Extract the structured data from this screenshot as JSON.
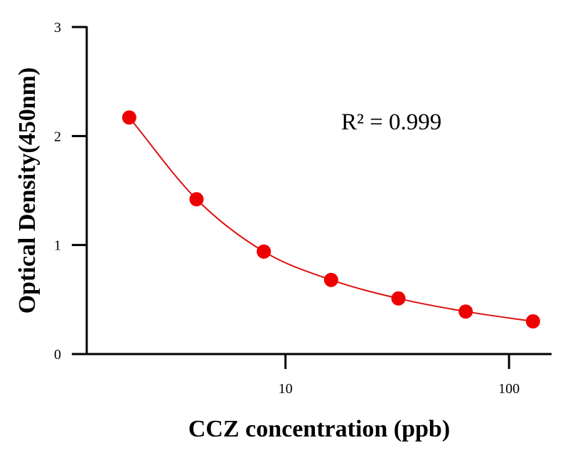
{
  "chart_data": {
    "type": "scatter",
    "title": "",
    "xlabel": "CCZ concentration (ppb)",
    "ylabel": "Optical Density(450nm)",
    "x_scale": "log",
    "xlim": [
      1.3,
      155
    ],
    "ylim": [
      0,
      3
    ],
    "x_ticks": [
      10,
      100
    ],
    "x_tick_labels": [
      "10",
      "100"
    ],
    "y_ticks": [
      0,
      1,
      2,
      3
    ],
    "y_tick_labels": [
      "0",
      "1",
      "2",
      "3"
    ],
    "grid": false,
    "annotation": "R² = 0.999",
    "colors": {
      "points": "#ee0000",
      "curve": "#dd1111",
      "axis": "#000000"
    },
    "series": [
      {
        "x": [
          2,
          4,
          8,
          16,
          32,
          64,
          128
        ],
        "y": [
          2.17,
          1.42,
          0.94,
          0.68,
          0.51,
          0.39,
          0.3
        ]
      }
    ]
  }
}
